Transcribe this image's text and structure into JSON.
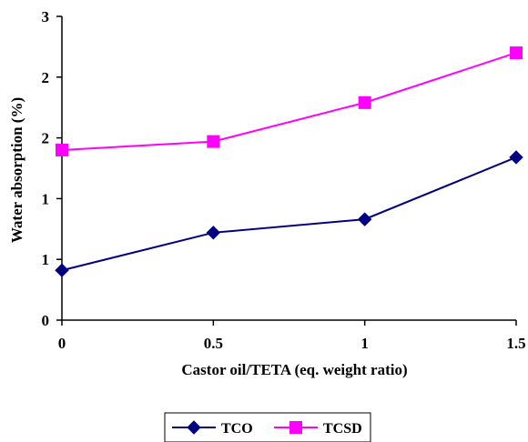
{
  "chart_data": {
    "type": "line",
    "x": [
      0,
      0.5,
      1,
      1.5
    ],
    "x_tick_labels": [
      "0",
      "0.5",
      "1",
      "1.5"
    ],
    "y_tick_labels": [
      "0",
      "1",
      "1",
      "2",
      "2",
      "3"
    ],
    "ylim": [
      0,
      2.5
    ],
    "xlabel": "Castor oil/TETA (eq. weight ratio)",
    "ylabel": "Water absorption (%)",
    "grid": false,
    "legend_position": "bottom-center",
    "series": [
      {
        "name": "TCO",
        "color": "#000080",
        "marker": "diamond",
        "values": [
          0.41,
          0.72,
          0.83,
          1.34
        ]
      },
      {
        "name": "TCSD",
        "color": "#ff00ff",
        "marker": "square",
        "values": [
          1.4,
          1.47,
          1.79,
          2.2
        ]
      }
    ]
  }
}
